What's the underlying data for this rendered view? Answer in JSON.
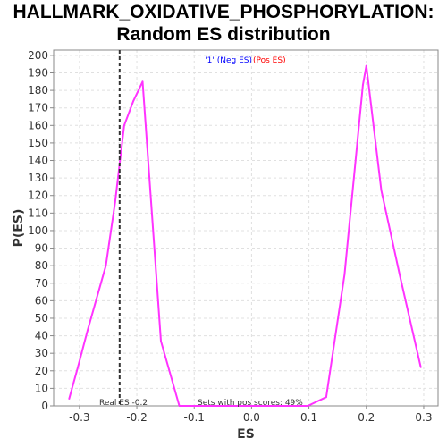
{
  "chart_data": {
    "type": "line",
    "title_line1": "HALLMARK_OXIDATIVE_PHOSPHORYLATION:",
    "title_line2": "Random ES distribution",
    "xlabel": "ES",
    "ylabel": "P(ES)",
    "xlim": [
      -0.345,
      0.325
    ],
    "ylim": [
      0,
      203
    ],
    "x_ticks": [
      -0.3,
      -0.2,
      -0.1,
      0.0,
      0.1,
      0.2,
      0.3
    ],
    "x_tick_labels": [
      "-0.3",
      "-0.2",
      "-0.1",
      "0.0",
      "0.1",
      "0.2",
      "0.3"
    ],
    "y_ticks": [
      0,
      10,
      20,
      30,
      40,
      50,
      60,
      70,
      80,
      90,
      100,
      110,
      120,
      130,
      140,
      150,
      160,
      170,
      180,
      190,
      200
    ],
    "grid": true,
    "legend": {
      "placement": "top-center",
      "neg_label": "'1' (Neg ES)",
      "pos_label": "(Pos ES)",
      "neg_color": "#0000ff",
      "pos_color": "#ff0000"
    },
    "series": [
      {
        "color": "#ff33ff",
        "x": [
          -0.318,
          -0.302,
          -0.286,
          -0.254,
          -0.238,
          -0.222,
          -0.206,
          -0.19,
          -0.158,
          -0.126,
          -0.094,
          -0.062,
          0.002,
          0.098,
          0.13,
          0.162,
          0.194,
          0.2,
          0.226,
          0.258,
          0.295
        ],
        "y": [
          4,
          23,
          43,
          80,
          116,
          160,
          174,
          185,
          37,
          0,
          0,
          0,
          0,
          0,
          5,
          75,
          183,
          194,
          123,
          75,
          22
        ]
      }
    ],
    "real_es": {
      "x": -0.23,
      "color": "#333333",
      "label": "Real ES -0.2"
    },
    "annotation": "Sets with pos scores: 49%",
    "colors": {
      "plot_border": "#888888",
      "grid": "#e0e0e0",
      "background": "#ffffff"
    }
  }
}
